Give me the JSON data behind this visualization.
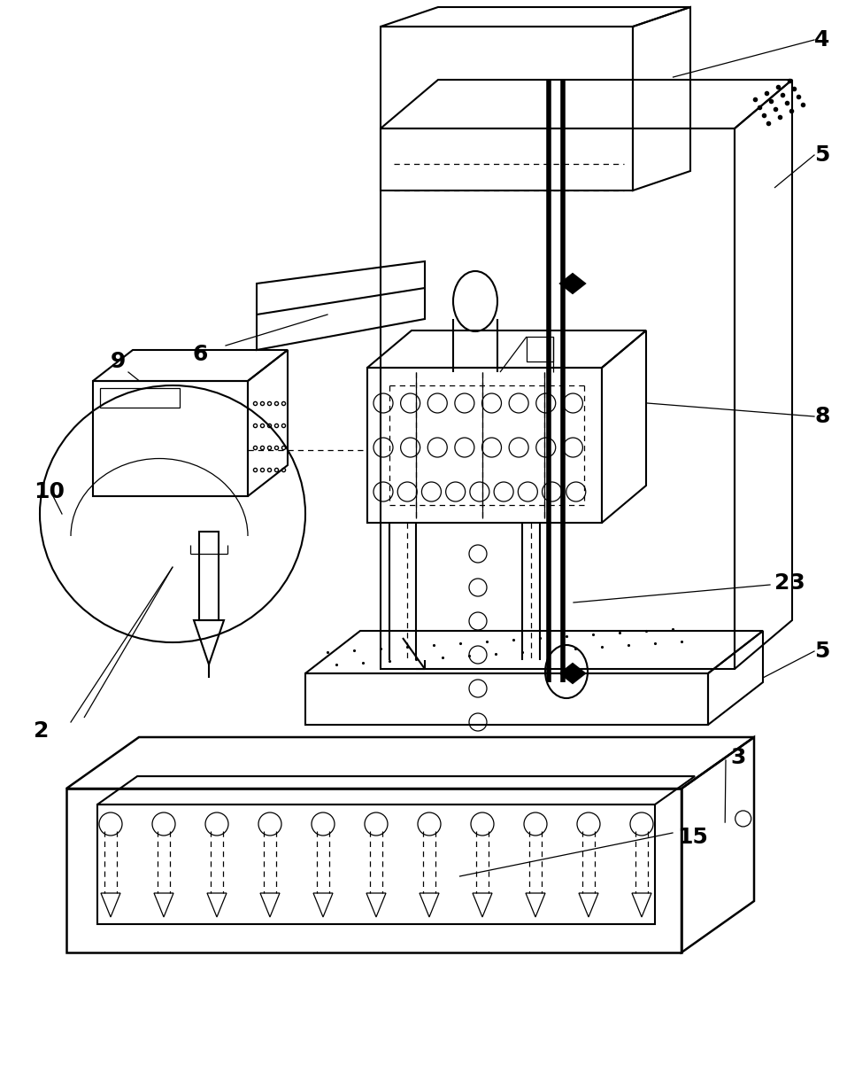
{
  "bg_color": "#ffffff",
  "line_color": "#000000",
  "lw": 1.5,
  "lw_thin": 0.9,
  "lw_thick": 4.0,
  "fs": 18
}
